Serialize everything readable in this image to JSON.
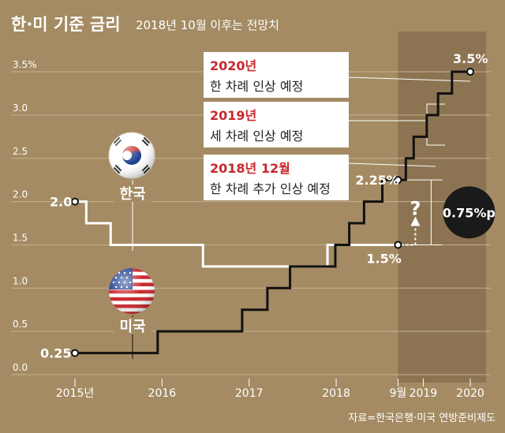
{
  "header": {
    "title": "한·미 기준 금리",
    "subtitle": "2018년 10월 이후는 전망치"
  },
  "source": "자료=한국은행·미국 연방준비제도",
  "chart_data": {
    "type": "line",
    "ylim": [
      0,
      3.5
    ],
    "y_ticks": [
      "0.0",
      "0.5",
      "1.0",
      "1.5",
      "2.0",
      "2.5",
      "3.0",
      "3.5%"
    ],
    "x_ticks": [
      {
        "label": "2015년",
        "t": 2015.67
      },
      {
        "label": "2016",
        "t": 2016.67
      },
      {
        "label": "2017",
        "t": 2017.67
      },
      {
        "label": "2018",
        "t": 2018.67
      },
      {
        "label": "9월",
        "t": 2019.38
      },
      {
        "label": "2019",
        "t": 2019.67
      },
      {
        "label": "2020",
        "t": 2020.21
      }
    ],
    "forecast_start": 2019.38,
    "series": [
      {
        "name": "한국",
        "color": "#ffffff",
        "steps": [
          {
            "t": 2015.67,
            "v": 2.0
          },
          {
            "t": 2015.8,
            "v": 1.75
          },
          {
            "t": 2016.08,
            "v": 1.5
          },
          {
            "t": 2017.14,
            "v": 1.25
          },
          {
            "t": 2018.57,
            "v": 1.5
          }
        ],
        "end_t": 2019.38
      },
      {
        "name": "미국",
        "color": "#111111",
        "steps": [
          {
            "t": 2015.67,
            "v": 0.25
          },
          {
            "t": 2016.62,
            "v": 0.5
          },
          {
            "t": 2017.59,
            "v": 0.75
          },
          {
            "t": 2017.88,
            "v": 1.0
          },
          {
            "t": 2018.14,
            "v": 1.25
          },
          {
            "t": 2018.66,
            "v": 1.5
          },
          {
            "t": 2018.82,
            "v": 1.75
          },
          {
            "t": 2018.99,
            "v": 2.0
          },
          {
            "t": 2019.2,
            "v": 2.25
          },
          {
            "t": 2019.47,
            "v": 2.5
          },
          {
            "t": 2019.56,
            "v": 2.75
          },
          {
            "t": 2019.71,
            "v": 3.0
          },
          {
            "t": 2019.84,
            "v": 3.25
          },
          {
            "t": 2020.0,
            "v": 3.5
          }
        ],
        "end_t": 2020.21
      }
    ],
    "point_labels": [
      {
        "text": "2.0",
        "t": 2015.67,
        "v": 2.0,
        "dx": -32,
        "dy": 0
      },
      {
        "text": "0.25",
        "t": 2015.67,
        "v": 0.25,
        "dx": -44,
        "dy": 0
      },
      {
        "text": "1.5%",
        "t": 2019.38,
        "v": 1.5,
        "dx": -40,
        "dy": 17
      },
      {
        "text": "2.25%",
        "t": 2019.38,
        "v": 2.25,
        "dx": -54,
        "dy": 0
      },
      {
        "text": "3.5%",
        "t": 2020.21,
        "v": 3.5,
        "dx": -22,
        "dy": -17
      }
    ],
    "gap": {
      "label": "0.75%p",
      "question": "?"
    },
    "country_labels": {
      "korea": "한국",
      "usa": "미국"
    },
    "annotations": [
      {
        "year": "2020년",
        "text": "한 차례 인상 예정"
      },
      {
        "year": "2019년",
        "text": "세 차례 인상 예정"
      },
      {
        "year": "2018년 12월",
        "text": "한 차례 추가 인상 예정"
      }
    ],
    "colors": {
      "background": "#a48b63",
      "forecast": "#8c7452",
      "grid": "#c3b08f",
      "accent": "#c8282d",
      "korea_line": "#ffffff",
      "usa_line": "#111111"
    }
  }
}
